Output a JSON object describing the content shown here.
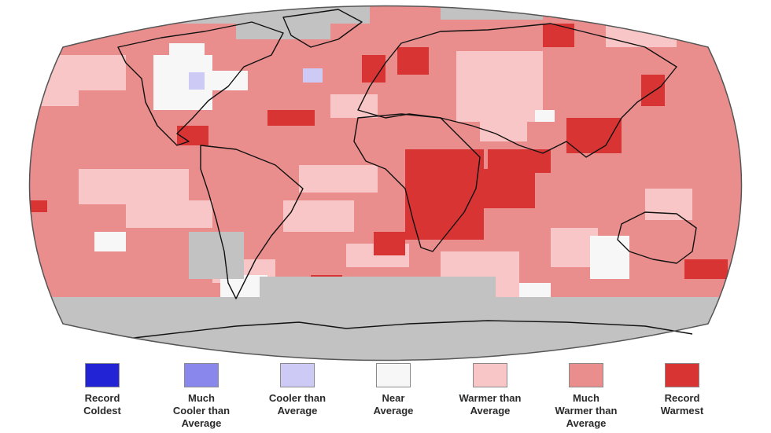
{
  "map": {
    "colors": {
      "record_coldest": "#2323d6",
      "much_cooler": "#8a87ec",
      "cooler": "#cdcbf6",
      "near_average": "#f7f7f7",
      "warmer": "#f8c6c6",
      "much_warmer": "#ea8d8d",
      "record_warmest": "#d93434",
      "no_data": "#c2c2c2",
      "outline": "#555555",
      "coastline": "#111111"
    }
  },
  "legend": {
    "items": [
      {
        "key": "record-coldest",
        "label": "Record\nColdest",
        "color": "#2323d6"
      },
      {
        "key": "much-cooler",
        "label": "Much\nCooler than\nAverage",
        "color": "#8a87ec"
      },
      {
        "key": "cooler",
        "label": "Cooler than\nAverage",
        "color": "#cdcbf6"
      },
      {
        "key": "near-average",
        "label": "Near\nAverage",
        "color": "#f7f7f7"
      },
      {
        "key": "warmer",
        "label": "Warmer than\nAverage",
        "color": "#f8c6c6"
      },
      {
        "key": "much-warmer",
        "label": "Much\nWarmer than\nAverage",
        "color": "#ea8d8d"
      },
      {
        "key": "record-warmest",
        "label": "Record\nWarmest",
        "color": "#d93434"
      }
    ]
  }
}
